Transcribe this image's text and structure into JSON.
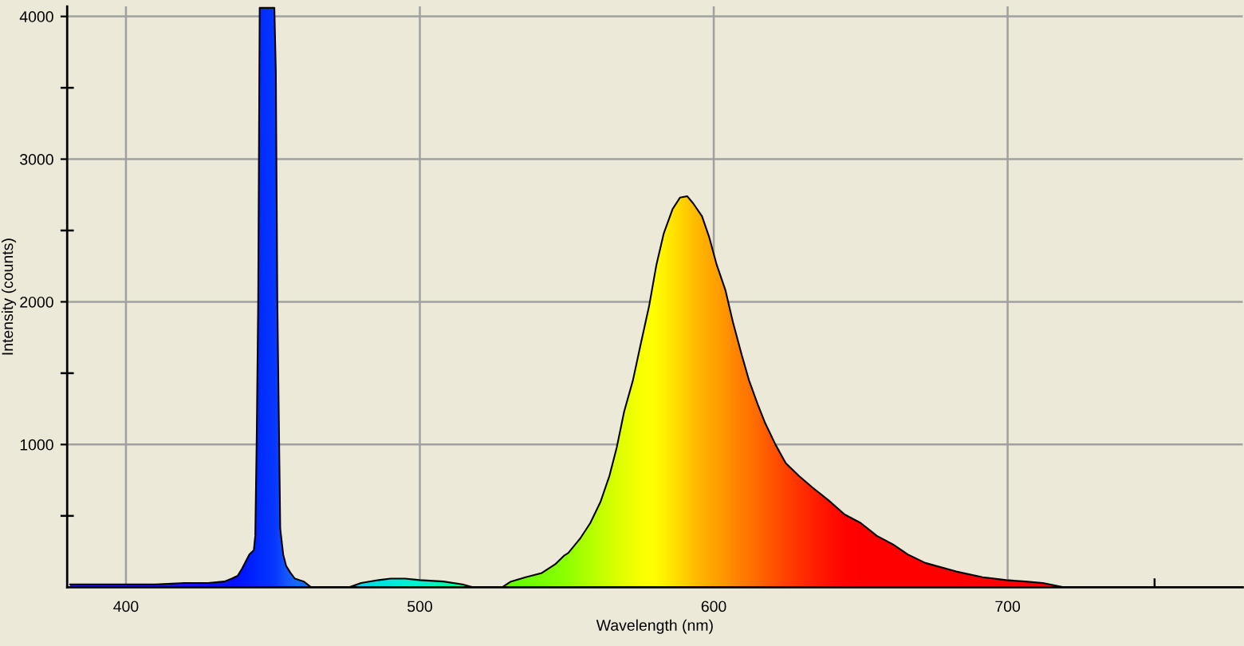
{
  "chart_data": {
    "type": "area",
    "xlabel": "Wavelength (nm)",
    "ylabel": "Intensity (counts)",
    "x": [
      381,
      390,
      400,
      410,
      420,
      428,
      433.5,
      436,
      438,
      439.5,
      441,
      442,
      443.5,
      444,
      444.5,
      445,
      445.5,
      450.5,
      451,
      451.5,
      452.5,
      453.5,
      454.5,
      456,
      457.5,
      460.5,
      463,
      476,
      480,
      486,
      490,
      495,
      500,
      508,
      514.5,
      518,
      528,
      531,
      536,
      541.5,
      546,
      549,
      550.5,
      554.5,
      558,
      561.5,
      564.5,
      567,
      569.5,
      572.5,
      575,
      578,
      580.5,
      583,
      586,
      588.5,
      591,
      593,
      596,
      598.5,
      601,
      604,
      606.5,
      609.5,
      612,
      615,
      617.5,
      621,
      624.5,
      629,
      633.5,
      639,
      644.5,
      650,
      655.5,
      661,
      666,
      672,
      682.5,
      691.5,
      699.5,
      706,
      712,
      719,
      780
    ],
    "values": [
      20,
      20,
      20,
      20,
      30,
      30,
      40,
      60,
      80,
      130,
      190,
      230,
      260,
      360,
      1060,
      2020,
      4060,
      4060,
      3610,
      2020,
      410,
      230,
      150,
      100,
      60,
      40,
      0,
      0,
      30,
      50,
      60,
      60,
      50,
      40,
      20,
      0,
      0,
      40,
      70,
      100,
      160,
      220,
      240,
      340,
      450,
      600,
      780,
      980,
      1230,
      1450,
      1690,
      1970,
      2260,
      2480,
      2650,
      2730,
      2740,
      2690,
      2600,
      2450,
      2260,
      2080,
      1860,
      1630,
      1450,
      1280,
      1150,
      1000,
      870,
      780,
      700,
      610,
      510,
      450,
      360,
      300,
      230,
      170,
      110,
      70,
      50,
      40,
      30,
      0,
      0
    ],
    "colors": [
      "#3010e0",
      "#3010e8",
      "#2810f0",
      "#2010f8",
      "#1810ff",
      "#1010ff",
      "#0810ff",
      "#0010ff",
      "#0014ff",
      "#0018ff",
      "#001cff",
      "#0020ff",
      "#0024ff",
      "#0026ff",
      "#0028ff",
      "#002aff",
      "#002cff",
      "#0838ff",
      "#0a3cff",
      "#0c40ff",
      "#0e48ff",
      "#1050ff",
      "#1258ff",
      "#1460ff",
      "#1468ff",
      "#1070ff",
      "#0880ff",
      "#00c0f0",
      "#00d8e8",
      "#00e0e0",
      "#00e8e0",
      "#00f0d8",
      "#00f0d0",
      "#00f8b0",
      "#00ff90",
      "#20ff60",
      "#50ff10",
      "#60ff00",
      "#6cff00",
      "#78ff00",
      "#84ff00",
      "#8cff00",
      "#92ff00",
      "#a4ff00",
      "#b4ff00",
      "#c4ff00",
      "#d0ff00",
      "#dcff00",
      "#e6ff00",
      "#f0ff00",
      "#f8ff00",
      "#ffff00",
      "#fffc00",
      "#fff000",
      "#ffe200",
      "#ffd600",
      "#ffca00",
      "#ffbe00",
      "#ffb200",
      "#ffa800",
      "#ffa000",
      "#ff9400",
      "#ff8800",
      "#ff7c00",
      "#ff7400",
      "#ff6800",
      "#ff5c00",
      "#ff5000",
      "#ff4200",
      "#ff3200",
      "#ff2200",
      "#ff1200",
      "#ff0400",
      "#ff0000",
      "#ff0000",
      "#ff0000",
      "#ff0000",
      "#ff0000",
      "#ff0000",
      "#ff0000",
      "#ff0000",
      "#ff0000",
      "#ff0000",
      "#ff0000",
      "#ff0000"
    ],
    "xlim": [
      380,
      780
    ],
    "ylim": [
      0,
      4070
    ],
    "xticks": [
      400,
      {
        "value": 450,
        "label": null
      },
      500,
      {
        "value": 550,
        "label": null
      },
      600,
      {
        "value": 650,
        "label": null
      },
      700,
      {
        "value": 750,
        "label": null
      }
    ],
    "yticks": [
      {
        "value": 500,
        "label": null
      },
      1000,
      {
        "value": 1500,
        "label": null
      },
      2000,
      {
        "value": 2500,
        "label": null
      },
      3000,
      {
        "value": 3500,
        "label": null
      },
      4000
    ],
    "grid": true
  }
}
